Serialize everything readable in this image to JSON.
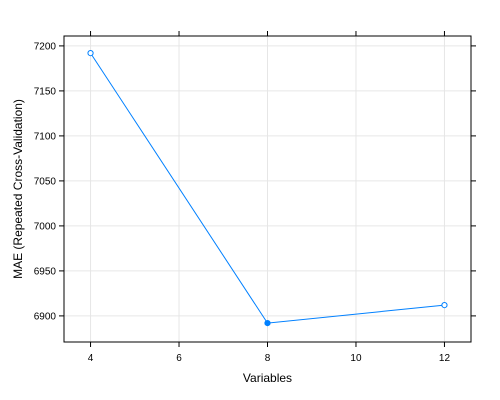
{
  "chart_data": {
    "type": "line",
    "title": "",
    "xlabel": "Variables",
    "ylabel": "MAE (Repeated Cross-Validation)",
    "xlim": [
      3.4,
      12.6
    ],
    "ylim": [
      6871,
      7211
    ],
    "x_ticks": [
      4,
      6,
      8,
      10,
      12
    ],
    "y_ticks": [
      6900,
      6950,
      7000,
      7050,
      7100,
      7150,
      7200
    ],
    "grid": true,
    "series": [
      {
        "x": [
          4,
          8,
          12
        ],
        "y": [
          7192,
          6892,
          6912
        ],
        "selected_index": 1
      }
    ],
    "colors": {
      "series": "#0080ff",
      "grid": "#e6e6e6",
      "frame": "#000000"
    }
  }
}
